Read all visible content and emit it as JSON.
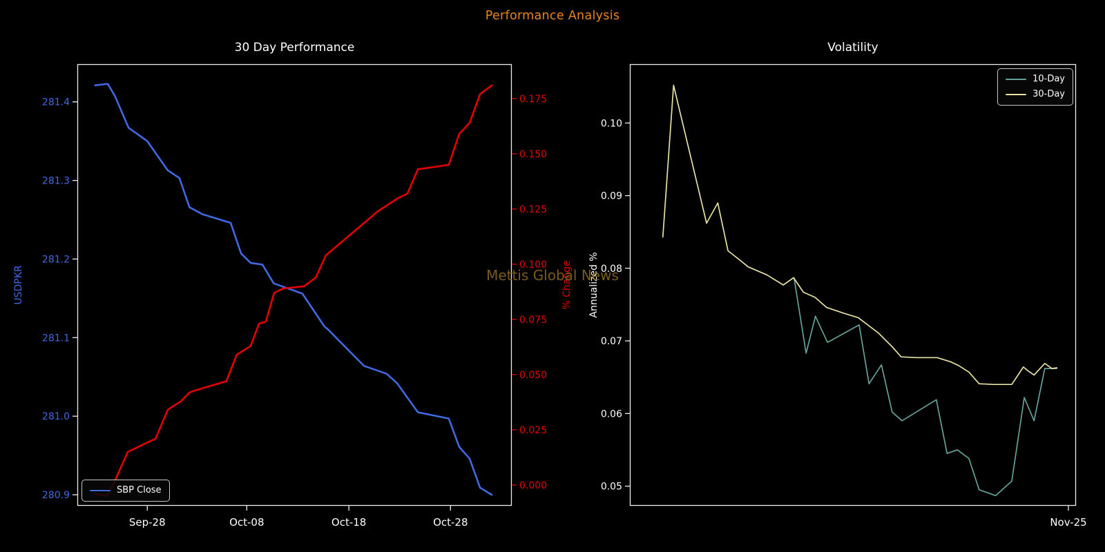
{
  "figure": {
    "title": "Performance Analysis",
    "title_color": "#e8851f",
    "background": "#000000",
    "spine_color": "#efefef",
    "watermark": {
      "text": "Mettis Global News",
      "color": "#8f6b22"
    }
  },
  "chart_data": [
    {
      "type": "line",
      "title": "30 Day Performance",
      "grid": false,
      "x_ticks": {
        "labels": [
          "Sep-28",
          "Oct-08",
          "Oct-18",
          "Oct-28"
        ],
        "fracs": [
          0.161,
          0.39,
          0.625,
          0.859
        ]
      },
      "left_axis": {
        "label": "USDPKR",
        "color": "#4169e1",
        "tick_line_color": "#efefef",
        "tick_labels": [
          "281.4",
          "281.3",
          "281.2",
          "281.1",
          "281.0",
          "280.9"
        ],
        "tick_values": [
          281.4,
          281.3,
          281.2,
          281.1,
          281.0,
          280.9
        ],
        "domain": [
          280.886,
          281.448
        ]
      },
      "right_axis": {
        "label": "% Change",
        "color": "#e30000",
        "tick_line_color": "#e30000",
        "tick_labels": [
          "0.175",
          "0.150",
          "0.125",
          "0.100",
          "0.075",
          "0.050",
          "0.025",
          "0.000"
        ],
        "tick_values": [
          0.175,
          0.15,
          0.125,
          0.1,
          0.075,
          0.05,
          0.025,
          0.0
        ],
        "domain": [
          -0.0094,
          0.1906
        ]
      },
      "legend": {
        "position": "bottom-left",
        "entries": [
          {
            "label": "SBP Close",
            "color": "#4169e1"
          }
        ]
      },
      "series": [
        {
          "name": "SBP Close",
          "axis": "left",
          "color": "#4169e1",
          "points": [
            [
              0.041,
              281.421
            ],
            [
              0.07,
              281.423
            ],
            [
              0.087,
              281.407
            ],
            [
              0.118,
              281.367
            ],
            [
              0.161,
              281.35
            ],
            [
              0.208,
              281.313
            ],
            [
              0.235,
              281.303
            ],
            [
              0.258,
              281.266
            ],
            [
              0.288,
              281.257
            ],
            [
              0.353,
              281.246
            ],
            [
              0.377,
              281.207
            ],
            [
              0.399,
              281.195
            ],
            [
              0.426,
              281.193
            ],
            [
              0.452,
              281.169
            ],
            [
              0.518,
              281.156
            ],
            [
              0.569,
              281.114
            ],
            [
              0.576,
              281.111
            ],
            [
              0.66,
              281.064
            ],
            [
              0.712,
              281.054
            ],
            [
              0.736,
              281.042
            ],
            [
              0.784,
              281.005
            ],
            [
              0.855,
              280.997
            ],
            [
              0.879,
              280.961
            ],
            [
              0.903,
              280.946
            ],
            [
              0.927,
              280.909
            ],
            [
              0.954,
              280.9
            ]
          ]
        },
        {
          "name": "% Change",
          "axis": "right",
          "color": "#e30000",
          "points": [
            [
              0.041,
              -0.004
            ],
            [
              0.068,
              -0.005
            ],
            [
              0.089,
              0.003
            ],
            [
              0.116,
              0.015
            ],
            [
              0.18,
              0.021
            ],
            [
              0.208,
              0.034
            ],
            [
              0.215,
              0.035
            ],
            [
              0.239,
              0.038
            ],
            [
              0.259,
              0.042
            ],
            [
              0.291,
              0.044
            ],
            [
              0.343,
              0.047
            ],
            [
              0.367,
              0.059
            ],
            [
              0.399,
              0.063
            ],
            [
              0.418,
              0.073
            ],
            [
              0.434,
              0.074
            ],
            [
              0.453,
              0.087
            ],
            [
              0.474,
              0.089
            ],
            [
              0.522,
              0.09
            ],
            [
              0.549,
              0.094
            ],
            [
              0.572,
              0.104
            ],
            [
              0.692,
              0.124
            ],
            [
              0.739,
              0.13
            ],
            [
              0.76,
              0.132
            ],
            [
              0.784,
              0.143
            ],
            [
              0.855,
              0.145
            ],
            [
              0.879,
              0.159
            ],
            [
              0.903,
              0.164
            ],
            [
              0.927,
              0.177
            ],
            [
              0.954,
              0.181
            ]
          ]
        }
      ]
    },
    {
      "type": "line",
      "title": "Volatility",
      "grid": false,
      "x_ticks": {
        "labels": [
          "Nov-25"
        ],
        "fracs": [
          0.983
        ]
      },
      "left_axis": {
        "label": "Annualized %",
        "color": "#ffffff",
        "tick_line_color": "#efefef",
        "tick_labels": [
          "0.10",
          "0.09",
          "0.08",
          "0.07",
          "0.06",
          "0.05"
        ],
        "tick_values": [
          0.1,
          0.09,
          0.08,
          0.07,
          0.06,
          0.05
        ],
        "domain": [
          0.0473,
          0.1081
        ]
      },
      "legend": {
        "position": "top-right",
        "entries": [
          {
            "label": "10-Day",
            "color": "#66a29b"
          },
          {
            "label": "30-Day",
            "color": "#e8e2a4"
          }
        ]
      },
      "series": [
        {
          "name": "10-Day",
          "axis": "left",
          "color": "#66a29b",
          "points": [
            [
              0.368,
              0.0787
            ],
            [
              0.395,
              0.0683
            ],
            [
              0.416,
              0.0734
            ],
            [
              0.443,
              0.0698
            ],
            [
              0.514,
              0.0722
            ],
            [
              0.536,
              0.0641
            ],
            [
              0.564,
              0.0667
            ],
            [
              0.588,
              0.0602
            ],
            [
              0.61,
              0.059
            ],
            [
              0.687,
              0.0619
            ],
            [
              0.711,
              0.0545
            ],
            [
              0.734,
              0.055
            ],
            [
              0.76,
              0.0538
            ],
            [
              0.783,
              0.0495
            ],
            [
              0.82,
              0.0487
            ],
            [
              0.856,
              0.0507
            ],
            [
              0.884,
              0.0622
            ],
            [
              0.906,
              0.059
            ],
            [
              0.93,
              0.0662
            ],
            [
              0.957,
              0.0662
            ]
          ]
        },
        {
          "name": "30-Day",
          "axis": "left",
          "color": "#e8e2a4",
          "points": [
            [
              0.074,
              0.0843
            ],
            [
              0.098,
              0.1052
            ],
            [
              0.172,
              0.0862
            ],
            [
              0.197,
              0.089
            ],
            [
              0.22,
              0.0824
            ],
            [
              0.243,
              0.0813
            ],
            [
              0.265,
              0.0802
            ],
            [
              0.307,
              0.0791
            ],
            [
              0.344,
              0.0777
            ],
            [
              0.367,
              0.0787
            ],
            [
              0.389,
              0.0767
            ],
            [
              0.415,
              0.076
            ],
            [
              0.441,
              0.0746
            ],
            [
              0.48,
              0.0738
            ],
            [
              0.512,
              0.0732
            ],
            [
              0.557,
              0.0711
            ],
            [
              0.588,
              0.0692
            ],
            [
              0.608,
              0.0678
            ],
            [
              0.642,
              0.0677
            ],
            [
              0.689,
              0.0677
            ],
            [
              0.72,
              0.0671
            ],
            [
              0.737,
              0.0666
            ],
            [
              0.76,
              0.0657
            ],
            [
              0.783,
              0.0641
            ],
            [
              0.817,
              0.064
            ],
            [
              0.856,
              0.064
            ],
            [
              0.882,
              0.0664
            ],
            [
              0.892,
              0.0659
            ],
            [
              0.906,
              0.0653
            ],
            [
              0.93,
              0.0669
            ],
            [
              0.946,
              0.0662
            ],
            [
              0.957,
              0.0663
            ]
          ]
        }
      ]
    }
  ]
}
